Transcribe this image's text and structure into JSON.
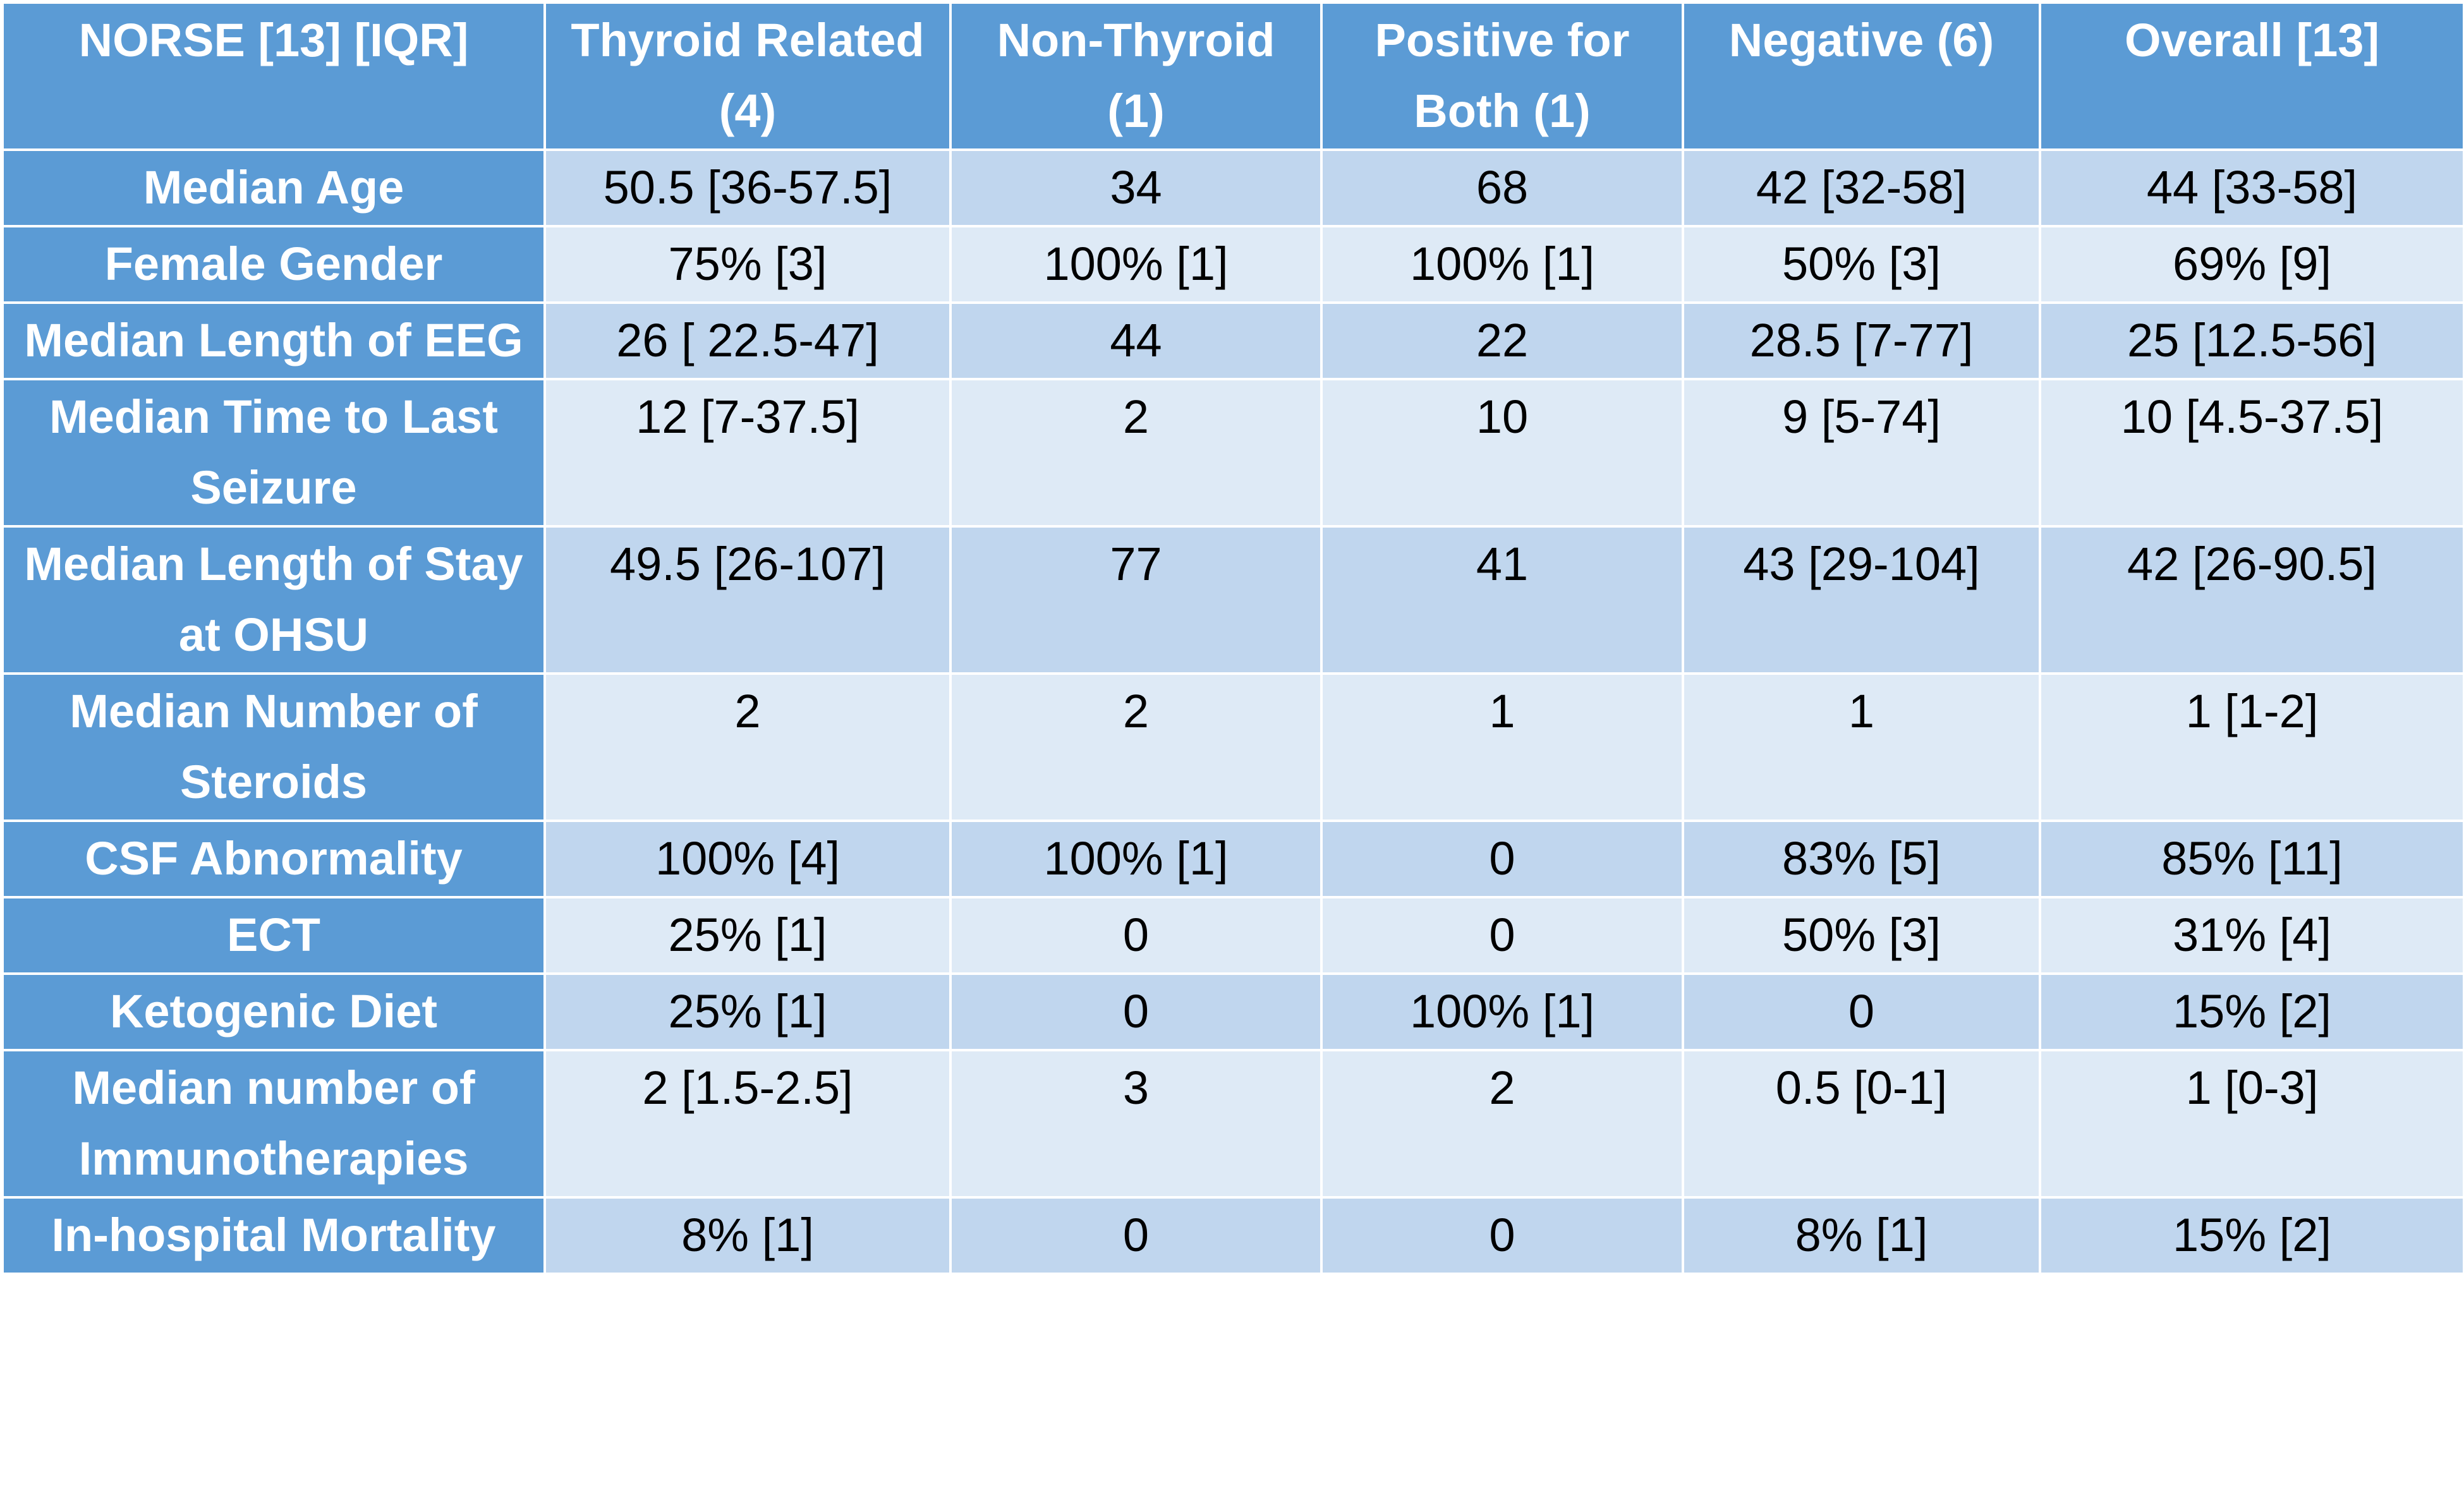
{
  "table": {
    "header": [
      "NORSE [13] [IQR]",
      "Thyroid Related (4)",
      "Non-Thyroid (1)",
      "Positive for Both (1)",
      "Negative (6)",
      "Overall [13]"
    ],
    "rows": [
      [
        "Median Age",
        "50.5 [36-57.5]",
        "34",
        "68",
        "42 [32-58]",
        "44 [33-58]"
      ],
      [
        "Female Gender",
        "75% [3]",
        "100% [1]",
        "100% [1]",
        "50% [3]",
        "69% [9]"
      ],
      [
        "Median Length of EEG",
        "26 [ 22.5-47]",
        "44",
        "22",
        "28.5 [7-77]",
        "25 [12.5-56]"
      ],
      [
        "Median Time to Last Seizure",
        "12 [7-37.5]",
        "2",
        "10",
        "9 [5-74]",
        "10 [4.5-37.5]"
      ],
      [
        "Median Length of Stay at OHSU",
        "49.5 [26-107]",
        "77",
        "41",
        "43 [29-104]",
        "42 [26-90.5]"
      ],
      [
        "Median Number of Steroids",
        "2",
        "2",
        "1",
        "1",
        "1 [1-2]"
      ],
      [
        "CSF Abnormality",
        "100% [4]",
        "100% [1]",
        "0",
        "83% [5]",
        "85% [11]"
      ],
      [
        "ECT",
        "25% [1]",
        "0",
        "0",
        "50% [3]",
        "31% [4]"
      ],
      [
        "Ketogenic Diet",
        "25% [1]",
        "0",
        "100% [1]",
        "0",
        "15% [2]"
      ],
      [
        "Median number of Immunotherapies",
        "2 [1.5-2.5]",
        "3",
        "2",
        "0.5 [0-1]",
        "1 [0-3]"
      ],
      [
        "In-hospital Mortality",
        "8% [1]",
        "0",
        "0",
        "8% [1]",
        "15% [2]"
      ]
    ]
  }
}
